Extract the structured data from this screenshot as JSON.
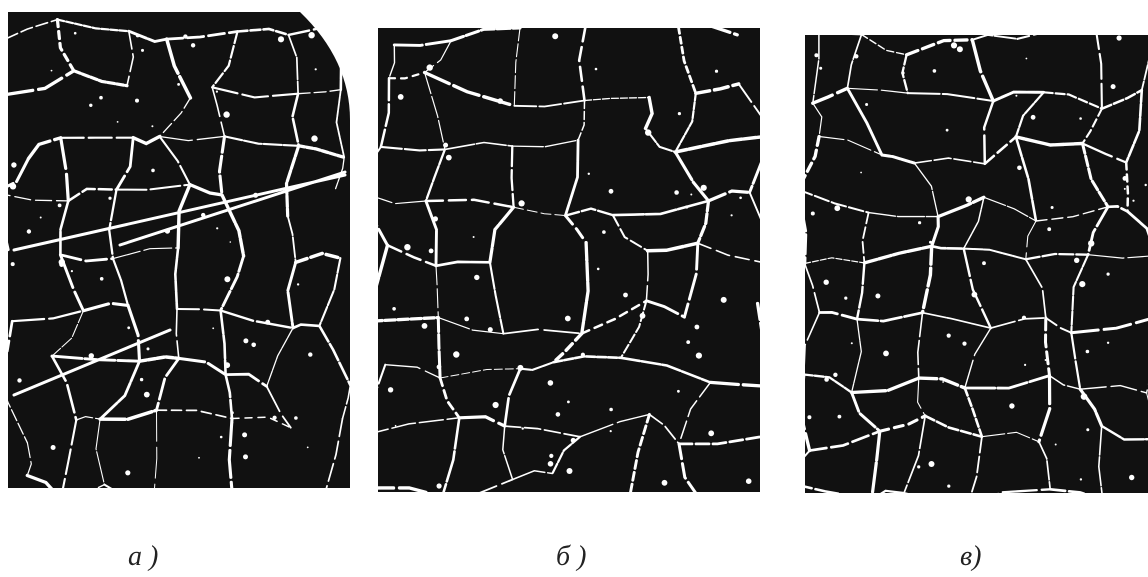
{
  "panels": [
    {
      "label": "а )"
    },
    {
      "label": "б )"
    },
    {
      "label": "в)"
    }
  ]
}
